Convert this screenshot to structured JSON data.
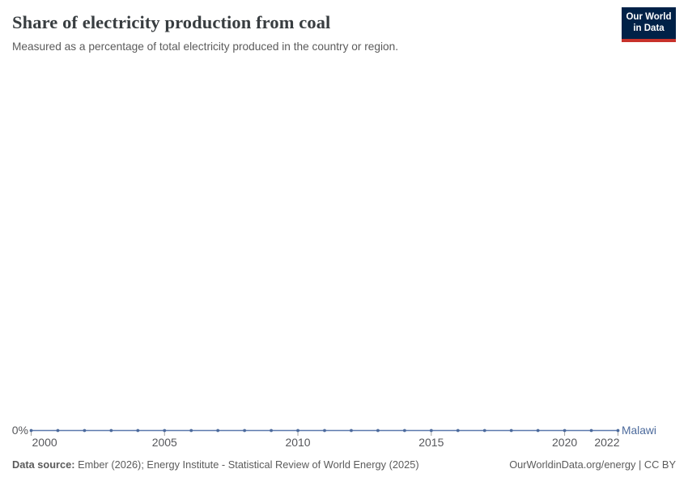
{
  "header": {
    "title": "Share of electricity production from coal",
    "subtitle": "Measured as a percentage of total electricity produced in the country or region.",
    "logo": {
      "line1": "Our World",
      "line2": "in Data"
    }
  },
  "chart_data": {
    "type": "line",
    "title": "Share of electricity production from coal",
    "xlabel": "",
    "ylabel": "",
    "unit": "%",
    "xlim": [
      2000,
      2022
    ],
    "ylim": [
      0,
      0
    ],
    "grid": false,
    "legend_position": "end-of-line",
    "x": [
      2000,
      2001,
      2002,
      2003,
      2004,
      2005,
      2006,
      2007,
      2008,
      2009,
      2010,
      2011,
      2012,
      2013,
      2014,
      2015,
      2016,
      2017,
      2018,
      2019,
      2020,
      2021,
      2022
    ],
    "series": [
      {
        "name": "Malawi",
        "values": [
          0,
          0,
          0,
          0,
          0,
          0,
          0,
          0,
          0,
          0,
          0,
          0,
          0,
          0,
          0,
          0,
          0,
          0,
          0,
          0,
          0,
          0,
          0
        ]
      }
    ],
    "x_ticks": [
      2000,
      2005,
      2010,
      2015,
      2020,
      2022
    ],
    "y_tick_labels": [
      "0%"
    ]
  },
  "footer": {
    "source_label": "Data source:",
    "source_text": " Ember (2026); Energy Institute - Statistical Review of World Energy (2025)",
    "link": "OurWorldinData.org/energy | CC BY"
  },
  "colors": {
    "line": "#5b79ae",
    "point": "#4c6a9c",
    "entity_label": "#4c6a9c",
    "tick": "#a1a1a1",
    "tick_label": "#56575b",
    "axis_label": "#56575b",
    "logo_bg": "#002147",
    "logo_stripe": "#c8322b"
  }
}
